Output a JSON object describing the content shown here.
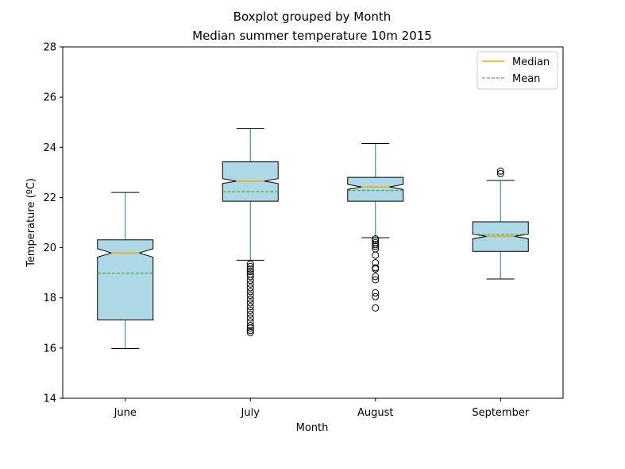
{
  "chart_data": {
    "type": "boxplot",
    "suptitle": "Boxplot grouped by Month",
    "title": "Median summer temperature 10m 2015",
    "xlabel": "Month",
    "ylabel": "Temperature (ºC)",
    "ylim": [
      14,
      28
    ],
    "yticks": [
      14,
      16,
      18,
      20,
      22,
      24,
      26,
      28
    ],
    "categories": [
      "June",
      "July",
      "August",
      "September"
    ],
    "legend": {
      "position": "top-right",
      "entries": [
        {
          "label": "Median",
          "color": "#ffa500",
          "style": "solid"
        },
        {
          "label": "Mean",
          "color": "#2ca02c",
          "style": "dashed"
        }
      ]
    },
    "boxes": [
      {
        "category": "June",
        "whisker_low": 15.98,
        "q1": 17.12,
        "median": 19.79,
        "q3": 20.31,
        "whisker_high": 22.2,
        "mean": 18.98,
        "notch_low": 19.62,
        "notch_high": 19.96,
        "outliers": []
      },
      {
        "category": "July",
        "whisker_low": 19.5,
        "q1": 21.85,
        "median": 22.65,
        "q3": 23.42,
        "whisker_high": 24.75,
        "mean": 22.23,
        "notch_low": 22.56,
        "notch_high": 22.75,
        "outliers": [
          19.35,
          19.25,
          19.15,
          19.05,
          18.95,
          18.85,
          18.7,
          18.55,
          18.4,
          18.25,
          18.1,
          17.95,
          17.8,
          17.65,
          17.5,
          17.35,
          17.2,
          17.05,
          16.9,
          16.8,
          16.7,
          16.62
        ]
      },
      {
        "category": "August",
        "whisker_low": 20.4,
        "q1": 21.85,
        "median": 22.42,
        "q3": 22.8,
        "whisker_high": 24.15,
        "mean": 22.28,
        "notch_low": 22.32,
        "notch_high": 22.52,
        "outliers": [
          20.35,
          20.28,
          20.2,
          20.12,
          20.05,
          19.95,
          19.7,
          19.4,
          19.2,
          19.15,
          18.85,
          18.72,
          18.2,
          18.05,
          17.6
        ]
      },
      {
        "category": "September",
        "whisker_low": 18.75,
        "q1": 19.85,
        "median": 20.45,
        "q3": 21.03,
        "whisker_high": 22.68,
        "mean": 20.52,
        "notch_low": 20.36,
        "notch_high": 20.54,
        "outliers": [
          23.05,
          22.95
        ]
      }
    ],
    "style": {
      "box_fill": "#add8e6",
      "box_edge": "#000000",
      "whisker_color": "#1f77b4",
      "median_color": "#ffa500",
      "mean_color": "#2ca02c"
    }
  }
}
